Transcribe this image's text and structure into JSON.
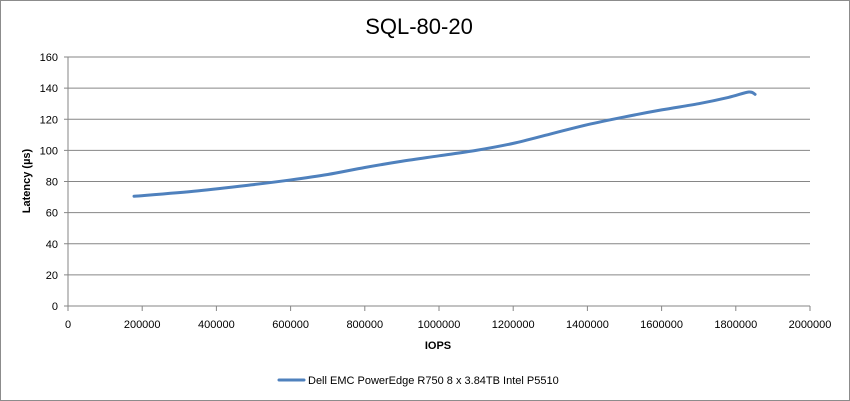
{
  "chart_data": {
    "type": "line",
    "title": "SQL-80-20",
    "xlabel": "IOPS",
    "ylabel": "Latency (µs)",
    "xlim": [
      0,
      2000000
    ],
    "ylim": [
      0,
      160
    ],
    "x_ticks": [
      0,
      200000,
      400000,
      600000,
      800000,
      1000000,
      1200000,
      1400000,
      1600000,
      1800000,
      2000000
    ],
    "y_ticks": [
      0,
      20,
      40,
      60,
      80,
      100,
      120,
      140,
      160
    ],
    "grid": "horizontal",
    "legend_position": "bottom",
    "series": [
      {
        "name": "Dell EMC PowerEdge R750 8 x 3.84TB Intel P5510",
        "color": "#4f81bd",
        "points": [
          [
            178000,
            70.5
          ],
          [
            350000,
            74
          ],
          [
            500000,
            78
          ],
          [
            600000,
            81
          ],
          [
            700000,
            84.5
          ],
          [
            800000,
            89
          ],
          [
            900000,
            93
          ],
          [
            1000000,
            96.5
          ],
          [
            1100000,
            100
          ],
          [
            1200000,
            104.5
          ],
          [
            1300000,
            110.5
          ],
          [
            1400000,
            116.5
          ],
          [
            1500000,
            121.5
          ],
          [
            1600000,
            126
          ],
          [
            1700000,
            130
          ],
          [
            1780000,
            134
          ],
          [
            1835000,
            137.5
          ],
          [
            1852000,
            136
          ]
        ]
      }
    ]
  }
}
